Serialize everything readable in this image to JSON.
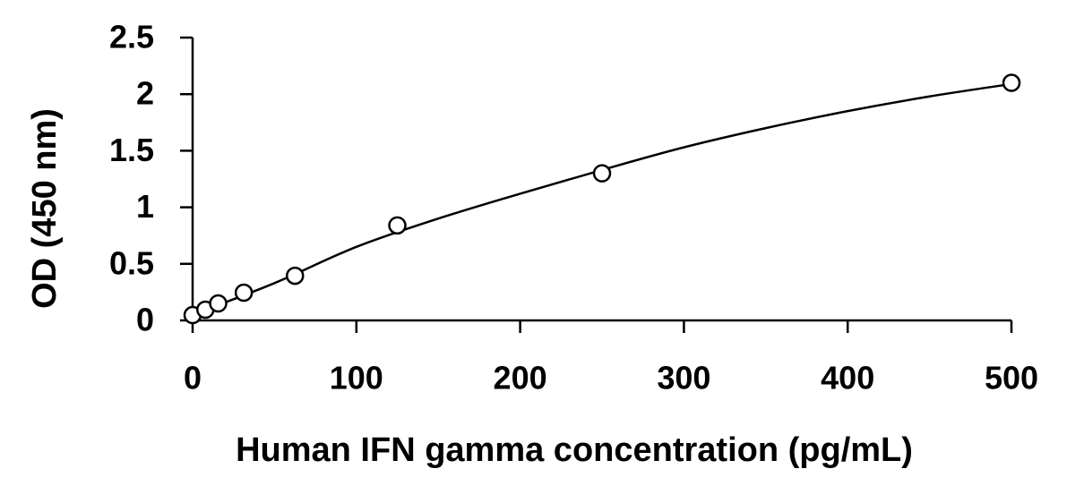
{
  "chart_data": {
    "type": "scatter",
    "x_label": "Human IFN gamma concentration (pg/mL)",
    "y_label": "OD (450 nm)",
    "series": [
      {
        "color": "#000000",
        "x": [
          0,
          7.8,
          15.6,
          31.25,
          62.5,
          125,
          250,
          500
        ],
        "values": [
          0.047,
          0.095,
          0.15,
          0.245,
          0.395,
          0.84,
          1.3,
          2.1
        ]
      }
    ],
    "fit": {
      "color": "#000000",
      "x": [
        0,
        50,
        100,
        150,
        200,
        250,
        300,
        350,
        400,
        450,
        500
      ],
      "values": [
        0.05,
        0.33,
        0.65,
        0.9,
        1.12,
        1.33,
        1.53,
        1.7,
        1.85,
        1.98,
        2.09
      ]
    },
    "xlim": [
      0,
      500
    ],
    "xticks": [
      0,
      100,
      200,
      300,
      400,
      500
    ],
    "ylim": [
      0,
      2.5
    ],
    "yticks": [
      0,
      0.5,
      1,
      1.5,
      2,
      2.5
    ],
    "grid": false
  }
}
